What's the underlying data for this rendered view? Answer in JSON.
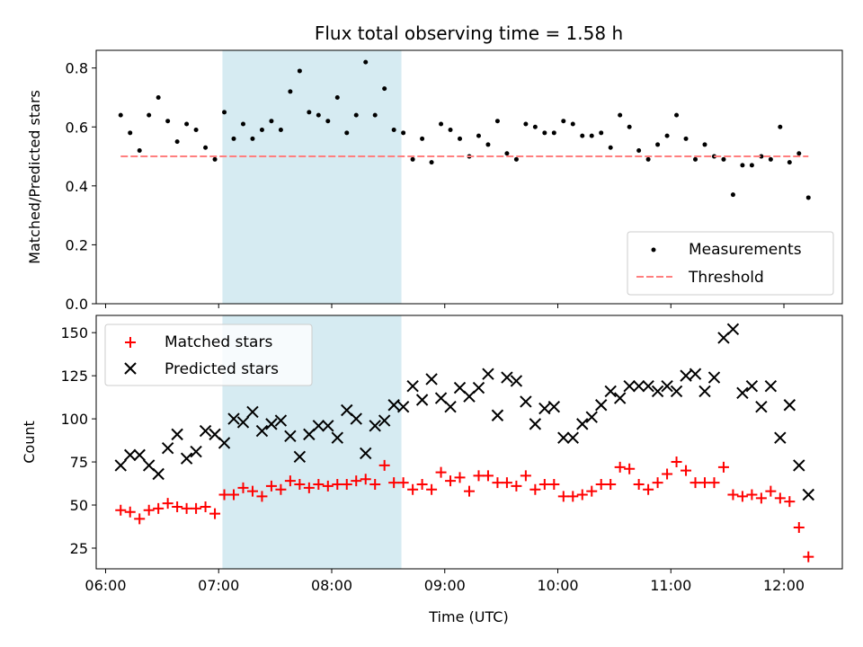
{
  "chart_data": [
    {
      "type": "scatter",
      "title": "Flux total observing time = 1.58 h",
      "ylabel": "Matched/Predicted stars",
      "xlabel": "",
      "xlim": [
        "05:55",
        "12:31"
      ],
      "ylim": [
        0,
        0.86
      ],
      "yticks": [
        "0.0",
        "0.2",
        "0.4",
        "0.6",
        "0.8"
      ],
      "ytick_values": [
        0,
        0.2,
        0.4,
        0.6,
        0.8
      ],
      "legend_position": "lower-right",
      "shaded_span": {
        "start": "07:02",
        "end": "08:37",
        "color": "#add8e6"
      },
      "series": [
        {
          "name": "Measurements",
          "kind": "scatter",
          "marker": "dot",
          "color": "#000000",
          "x": [
            "06:08",
            "06:13",
            "06:18",
            "06:23",
            "06:28",
            "06:33",
            "06:38",
            "06:43",
            "06:48",
            "06:53",
            "06:58",
            "07:03",
            "07:08",
            "07:13",
            "07:18",
            "07:23",
            "07:28",
            "07:33",
            "07:38",
            "07:43",
            "07:48",
            "07:53",
            "07:58",
            "08:03",
            "08:08",
            "08:13",
            "08:18",
            "08:23",
            "08:28",
            "08:33",
            "08:38",
            "08:43",
            "08:48",
            "08:53",
            "08:58",
            "09:03",
            "09:08",
            "09:13",
            "09:18",
            "09:23",
            "09:28",
            "09:33",
            "09:38",
            "09:43",
            "09:48",
            "09:53",
            "09:58",
            "10:03",
            "10:08",
            "10:13",
            "10:18",
            "10:23",
            "10:28",
            "10:33",
            "10:38",
            "10:43",
            "10:48",
            "10:53",
            "10:58",
            "11:03",
            "11:08",
            "11:13",
            "11:18",
            "11:23",
            "11:28",
            "11:33",
            "11:38",
            "11:43",
            "11:48",
            "11:53",
            "11:58",
            "12:03",
            "12:08",
            "12:13"
          ],
          "y": [
            0.64,
            0.58,
            0.52,
            0.64,
            0.7,
            0.62,
            0.55,
            0.61,
            0.59,
            0.53,
            0.49,
            0.65,
            0.56,
            0.61,
            0.56,
            0.59,
            0.62,
            0.59,
            0.72,
            0.79,
            0.65,
            0.64,
            0.62,
            0.7,
            0.58,
            0.64,
            0.82,
            0.64,
            0.73,
            0.59,
            0.58,
            0.49,
            0.56,
            0.48,
            0.61,
            0.59,
            0.56,
            0.5,
            0.57,
            0.54,
            0.62,
            0.51,
            0.49,
            0.61,
            0.6,
            0.58,
            0.58,
            0.62,
            0.61,
            0.57,
            0.57,
            0.58,
            0.53,
            0.64,
            0.6,
            0.52,
            0.49,
            0.54,
            0.57,
            0.64,
            0.56,
            0.49,
            0.54,
            0.5,
            0.49,
            0.37,
            0.47,
            0.47,
            0.5,
            0.49,
            0.6,
            0.48,
            0.51,
            0.36
          ]
        },
        {
          "name": "Threshold",
          "kind": "line",
          "dash": "dashed",
          "color": "#ff7f7f",
          "x": [
            "06:08",
            "12:13"
          ],
          "y": [
            0.5,
            0.5
          ]
        }
      ]
    },
    {
      "type": "scatter",
      "title": "",
      "ylabel": "Count",
      "xlabel": "Time (UTC)",
      "xlim": [
        "05:55",
        "12:31"
      ],
      "ylim": [
        13,
        160
      ],
      "yticks": [
        "25",
        "50",
        "75",
        "100",
        "125",
        "150"
      ],
      "ytick_values": [
        25,
        50,
        75,
        100,
        125,
        150
      ],
      "xticks": [
        "06:00",
        "07:00",
        "08:00",
        "09:00",
        "10:00",
        "11:00",
        "12:00"
      ],
      "legend_position": "upper-left",
      "shaded_span": {
        "start": "07:02",
        "end": "08:37",
        "color": "#add8e6"
      },
      "series": [
        {
          "name": "Matched stars",
          "kind": "scatter",
          "marker": "plus",
          "color": "#ff0000",
          "x": [
            "06:08",
            "06:13",
            "06:18",
            "06:23",
            "06:28",
            "06:33",
            "06:38",
            "06:43",
            "06:48",
            "06:53",
            "06:58",
            "07:03",
            "07:08",
            "07:13",
            "07:18",
            "07:23",
            "07:28",
            "07:33",
            "07:38",
            "07:43",
            "07:48",
            "07:53",
            "07:58",
            "08:03",
            "08:08",
            "08:13",
            "08:18",
            "08:23",
            "08:28",
            "08:33",
            "08:38",
            "08:43",
            "08:48",
            "08:53",
            "08:58",
            "09:03",
            "09:08",
            "09:13",
            "09:18",
            "09:23",
            "09:28",
            "09:33",
            "09:38",
            "09:43",
            "09:48",
            "09:53",
            "09:58",
            "10:03",
            "10:08",
            "10:13",
            "10:18",
            "10:23",
            "10:28",
            "10:33",
            "10:38",
            "10:43",
            "10:48",
            "10:53",
            "10:58",
            "11:03",
            "11:08",
            "11:13",
            "11:18",
            "11:23",
            "11:28",
            "11:33",
            "11:38",
            "11:43",
            "11:48",
            "11:53",
            "11:58",
            "12:03",
            "12:08",
            "12:13"
          ],
          "y": [
            47,
            46,
            42,
            47,
            48,
            51,
            49,
            48,
            48,
            49,
            45,
            56,
            56,
            60,
            58,
            55,
            61,
            59,
            64,
            62,
            60,
            62,
            61,
            62,
            62,
            64,
            65,
            62,
            73,
            63,
            63,
            59,
            62,
            59,
            69,
            64,
            66,
            58,
            67,
            67,
            63,
            63,
            61,
            67,
            59,
            62,
            62,
            55,
            55,
            56,
            58,
            62,
            62,
            72,
            71,
            62,
            59,
            63,
            68,
            75,
            70,
            63,
            63,
            63,
            72,
            56,
            55,
            56,
            54,
            58,
            54,
            52,
            37,
            20
          ]
        },
        {
          "name": "Predicted stars",
          "kind": "scatter",
          "marker": "cross",
          "color": "#000000",
          "x": [
            "06:08",
            "06:13",
            "06:18",
            "06:23",
            "06:28",
            "06:33",
            "06:38",
            "06:43",
            "06:48",
            "06:53",
            "06:58",
            "07:03",
            "07:08",
            "07:13",
            "07:18",
            "07:23",
            "07:28",
            "07:33",
            "07:38",
            "07:43",
            "07:48",
            "07:53",
            "07:58",
            "08:03",
            "08:08",
            "08:13",
            "08:18",
            "08:23",
            "08:28",
            "08:33",
            "08:38",
            "08:43",
            "08:48",
            "08:53",
            "08:58",
            "09:03",
            "09:08",
            "09:13",
            "09:18",
            "09:23",
            "09:28",
            "09:33",
            "09:38",
            "09:43",
            "09:48",
            "09:53",
            "09:58",
            "10:03",
            "10:08",
            "10:13",
            "10:18",
            "10:23",
            "10:28",
            "10:33",
            "10:38",
            "10:43",
            "10:48",
            "10:53",
            "10:58",
            "11:03",
            "11:08",
            "11:13",
            "11:18",
            "11:23",
            "11:28",
            "11:33",
            "11:38",
            "11:43",
            "11:48",
            "11:53",
            "11:58",
            "12:03",
            "12:08",
            "12:13"
          ],
          "y": [
            73,
            79,
            79,
            73,
            68,
            83,
            91,
            77,
            81,
            93,
            91,
            86,
            100,
            98,
            104,
            93,
            97,
            99,
            90,
            78,
            91,
            96,
            96,
            89,
            105,
            100,
            80,
            96,
            99,
            108,
            107,
            119,
            111,
            123,
            112,
            107,
            118,
            113,
            118,
            126,
            102,
            124,
            122,
            110,
            97,
            106,
            107,
            89,
            89,
            97,
            101,
            108,
            116,
            112,
            119,
            119,
            119,
            116,
            119,
            116,
            125,
            126,
            116,
            124,
            147,
            152,
            115,
            119,
            107,
            119,
            89,
            108,
            73,
            56
          ]
        }
      ]
    }
  ]
}
